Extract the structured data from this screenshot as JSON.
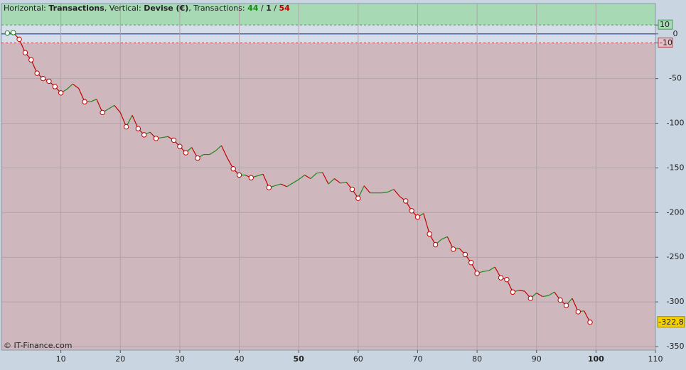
{
  "chart_data": {
    "type": "line",
    "title_parts": [
      "Horizontal: ",
      "Transactions",
      ", Vertical: ",
      "Devise (€)",
      ", Transactions: ",
      "44",
      " / ",
      "1",
      " / ",
      "54"
    ],
    "watermark": "© IT-Finance.com",
    "x": [
      1,
      2,
      3,
      4,
      5,
      6,
      7,
      8,
      9,
      10,
      11,
      12,
      13,
      14,
      15,
      16,
      17,
      18,
      19,
      20,
      21,
      22,
      23,
      24,
      25,
      26,
      27,
      28,
      29,
      30,
      31,
      32,
      33,
      34,
      35,
      36,
      37,
      38,
      39,
      40,
      41,
      42,
      43,
      44,
      45,
      46,
      47,
      48,
      49,
      50,
      51,
      52,
      53,
      54,
      55,
      56,
      57,
      58,
      59,
      60,
      61,
      62,
      63,
      64,
      65,
      66,
      67,
      68,
      69,
      70,
      71,
      72,
      73,
      74,
      75,
      76,
      77,
      78,
      79,
      80,
      81,
      82,
      83,
      84,
      85,
      86,
      87,
      88,
      89,
      90,
      91,
      92,
      93,
      94,
      95,
      96,
      97,
      98,
      99
    ],
    "series": [
      {
        "name": "Devise (€)",
        "up_color": "#1a8a1a",
        "down_color": "#c00000",
        "values": [
          1,
          1.5,
          -6,
          -21,
          -29,
          -44,
          -50,
          -53,
          -59,
          -66,
          -62,
          -56,
          -61,
          -76,
          -76,
          -73,
          -88,
          -84,
          -80,
          -88,
          -104,
          -91,
          -106,
          -113,
          -110,
          -117,
          -116,
          -115,
          -119,
          -126,
          -133,
          -127,
          -139,
          -135,
          -135,
          -131,
          -125,
          -139,
          -151,
          -158,
          -158,
          -161,
          -159,
          -157,
          -172,
          -170,
          -168,
          -171,
          -167,
          -163,
          -158,
          -162,
          -156,
          -155,
          -168,
          -162,
          -167,
          -166,
          -174,
          -184,
          -170,
          -178,
          -178,
          -178,
          -177,
          -174,
          -182,
          -187,
          -198,
          -205,
          -201,
          -224,
          -236,
          -230,
          -227,
          -241,
          -240,
          -247,
          -256,
          -268,
          -266,
          -265,
          -261,
          -273,
          -275,
          -289,
          -287,
          -288,
          -296,
          -290,
          -294,
          -293,
          -289,
          -298,
          -304,
          -296,
          -311,
          -310,
          -322.8
        ],
        "value_labels": [
          null,
          null,
          null,
          null,
          null,
          null,
          null,
          null,
          null,
          null,
          null,
          null,
          null,
          null,
          null,
          null,
          null,
          null,
          null,
          null,
          null,
          null,
          null,
          null,
          null,
          null,
          null,
          null,
          null,
          null,
          null,
          null,
          null,
          null,
          null,
          null,
          null,
          null,
          null,
          null,
          null,
          null,
          null,
          null,
          null,
          null,
          null,
          null,
          null,
          null,
          null,
          null,
          null,
          null,
          null,
          null,
          null,
          null,
          null,
          null,
          null,
          null,
          null,
          null,
          null,
          null,
          null,
          null,
          null,
          null,
          null,
          null,
          null,
          null,
          null,
          null,
          null,
          null,
          null,
          null,
          null,
          null,
          null,
          null,
          null,
          null,
          null,
          null,
          null,
          null,
          null,
          null,
          null,
          null,
          null,
          null,
          null,
          null,
          "-322,8"
        ]
      }
    ],
    "xlim": [
      0,
      110
    ],
    "xticks": [
      10,
      20,
      30,
      40,
      50,
      60,
      70,
      80,
      90,
      100,
      110
    ],
    "ylim": [
      -354,
      34
    ],
    "yticks": [
      10,
      0,
      -10,
      -50,
      -100,
      -150,
      -200,
      -250,
      -300,
      -350
    ],
    "neutral_band": [
      -10,
      10
    ],
    "grid": true
  }
}
